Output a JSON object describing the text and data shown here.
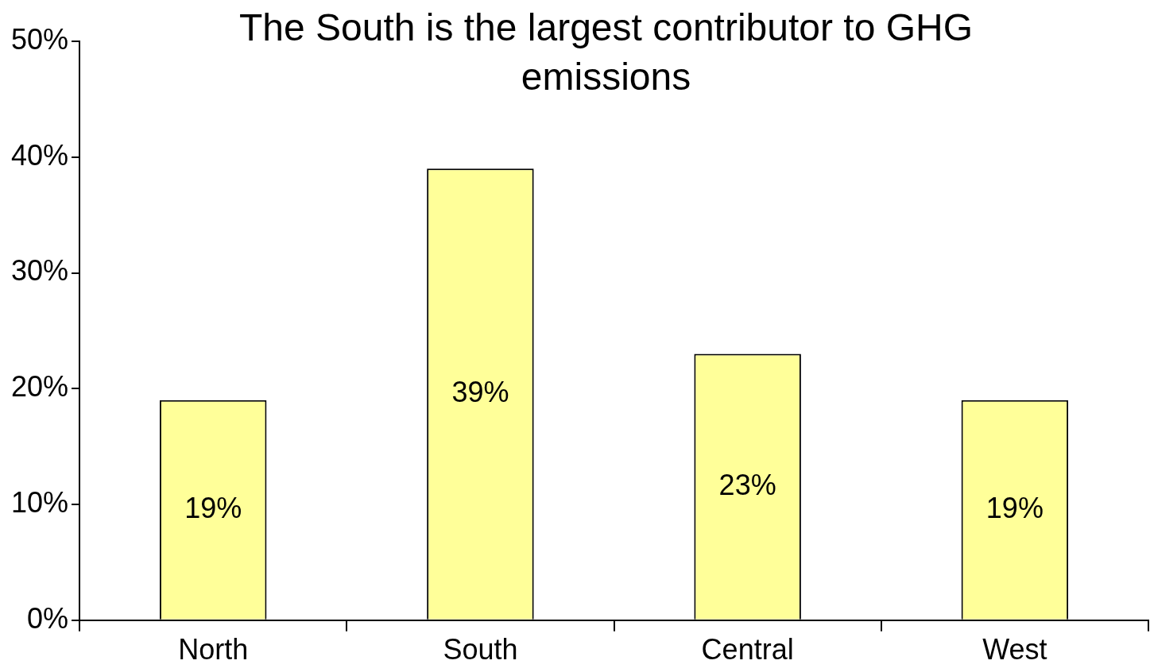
{
  "chart_data": {
    "type": "bar",
    "title": "The South is the largest contributor to GHG emissions",
    "categories": [
      "North",
      "South",
      "Central",
      "West"
    ],
    "values": [
      19,
      39,
      23,
      19
    ],
    "value_labels": [
      "19%",
      "39%",
      "23%",
      "19%"
    ],
    "color": "#ffff99",
    "ylim": [
      0,
      50
    ],
    "yticks": [
      {
        "value": 0,
        "label": "0%"
      },
      {
        "value": 10,
        "label": "10%"
      },
      {
        "value": 20,
        "label": "20%"
      },
      {
        "value": 30,
        "label": "30%"
      },
      {
        "value": 40,
        "label": "40%"
      },
      {
        "value": 50,
        "label": "50%"
      }
    ],
    "grid": false,
    "legend": false
  }
}
